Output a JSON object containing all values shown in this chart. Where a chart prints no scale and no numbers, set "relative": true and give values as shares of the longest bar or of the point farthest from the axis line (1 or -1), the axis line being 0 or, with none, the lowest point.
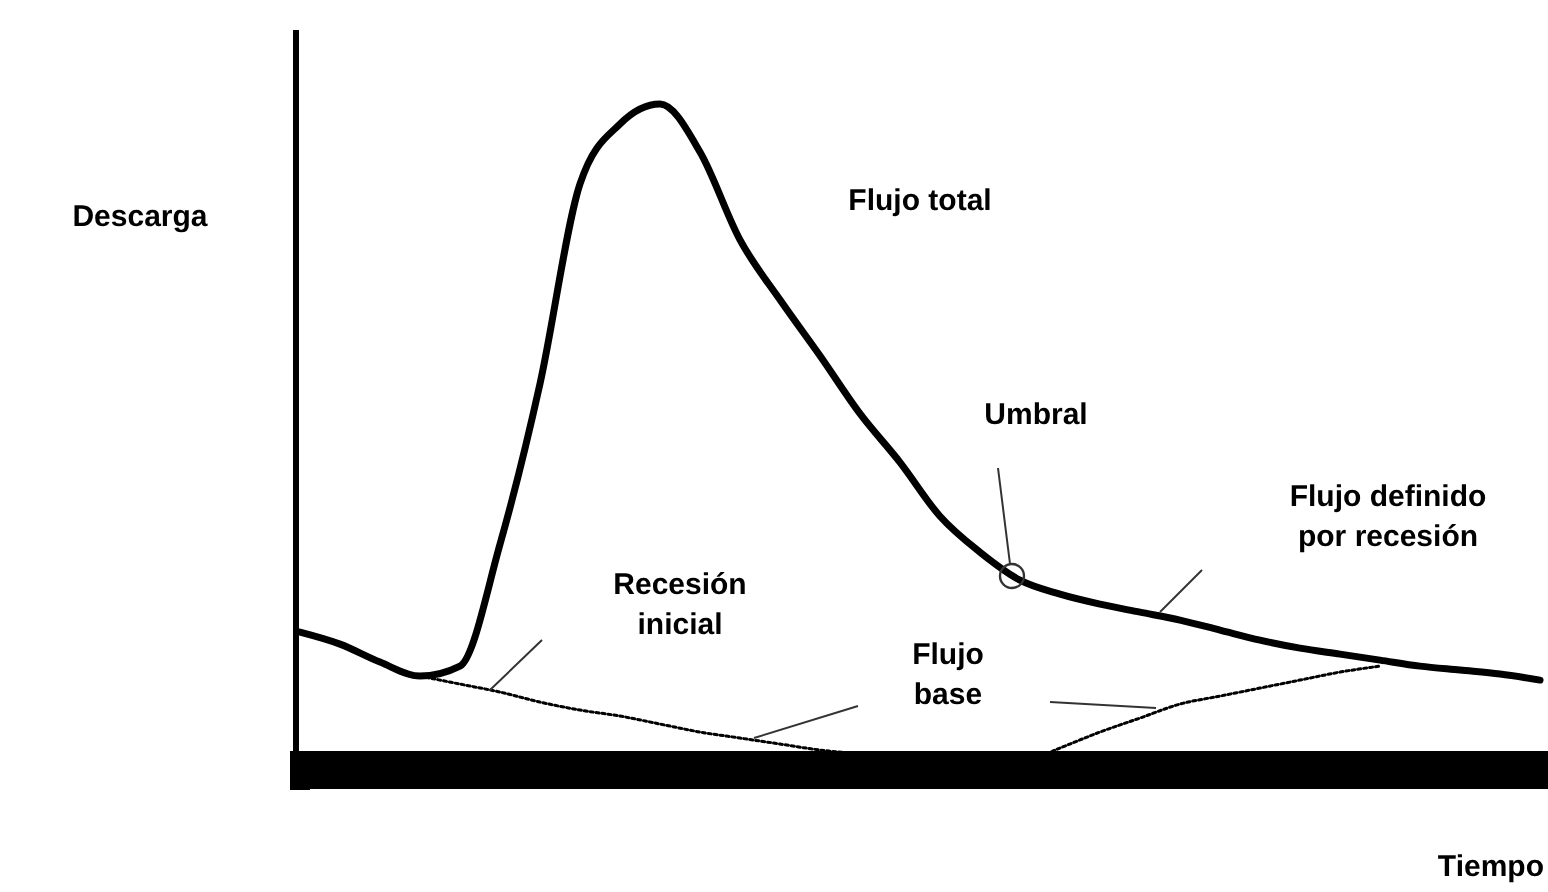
{
  "chart_data": {
    "type": "line",
    "relative": true,
    "xlabel": "Tiempo",
    "ylabel": "Descarga",
    "categories": [
      null,
      null,
      null,
      null,
      null,
      null,
      null,
      null,
      null,
      null,
      null,
      null,
      null,
      null,
      null,
      null,
      null,
      null,
      null,
      null,
      null,
      null,
      null,
      null,
      null,
      null,
      null,
      null,
      null,
      null,
      null,
      null
    ],
    "series": [
      {
        "color": "#000000",
        "line_style": "solid",
        "values": [
          0.207,
          0.189,
          0.162,
          0.141,
          0.156,
          0.339,
          0.58,
          0.88,
          0.97,
          1,
          0.928,
          0.796,
          0.706,
          0.622,
          0.535,
          0.462,
          0.381,
          0.327,
          0.285,
          0.264,
          0.249,
          0.237,
          0.225,
          0.21,
          0.195,
          0.183,
          0.174,
          0.165,
          0.156,
          0.15,
          0.144,
          0.135
        ]
      },
      {
        "color": "#000000",
        "line_style": "dotted",
        "values": [
          null,
          null,
          null,
          0.141,
          0.129,
          0.117,
          0.102,
          0.09,
          0.081,
          0.069,
          0.057,
          0.048,
          0.039,
          0.03,
          0.024,
          0.018,
          0.012,
          0.006,
          0.009,
          0.033,
          0.057,
          0.078,
          0.099,
          0.111,
          0.123,
          0.135,
          0.147,
          0.156,
          null,
          null,
          null,
          null
        ]
      }
    ],
    "annotations": [
      "Flujo total",
      "Umbral",
      "Flujo definido\npor recesión",
      "Recesión\ninicial",
      "Flujo\nbase"
    ],
    "grid": false
  }
}
